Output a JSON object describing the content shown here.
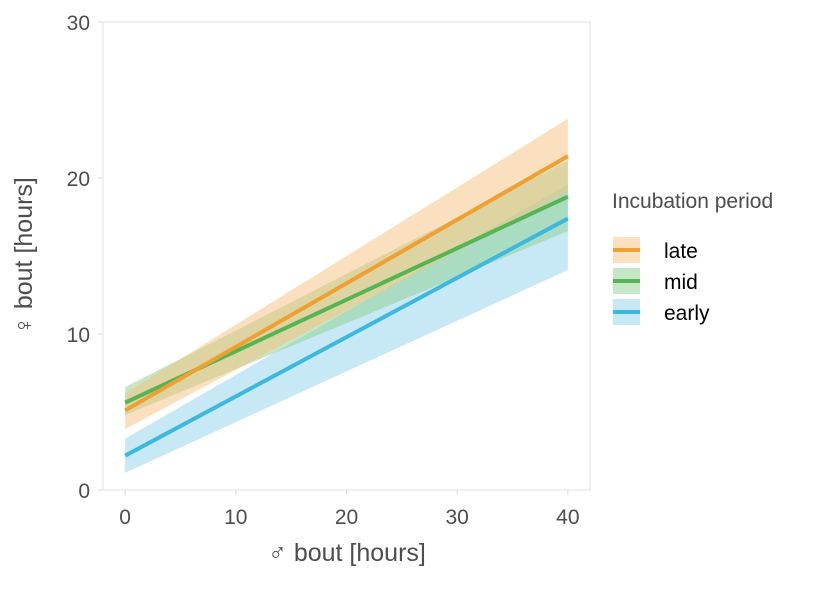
{
  "chart_data": {
    "type": "line",
    "xlabel": "♂ bout [hours]",
    "ylabel": "♀ bout [hours]",
    "xlim": [
      -2,
      42
    ],
    "ylim": [
      0,
      30
    ],
    "x_ticks": [
      "0",
      "10",
      "20",
      "30",
      "40"
    ],
    "y_ticks": [
      "0",
      "10",
      "20",
      "30"
    ],
    "grid": false,
    "legend": {
      "title": "Incubation period",
      "placement": "right",
      "entries": [
        "late",
        "mid",
        "early"
      ]
    },
    "series": [
      {
        "name": "late",
        "color": "#F0A030",
        "band_color": "#F5C27D",
        "x": [
          0,
          40
        ],
        "y": [
          5.1,
          21.4
        ],
        "lower": [
          3.9,
          19.1
        ],
        "upper": [
          6.2,
          23.8
        ]
      },
      {
        "name": "mid",
        "color": "#55B555",
        "band_color": "#8ED08E",
        "x": [
          0,
          40
        ],
        "y": [
          5.6,
          18.8
        ],
        "lower": [
          4.8,
          16.6
        ],
        "upper": [
          6.6,
          21.1
        ]
      },
      {
        "name": "early",
        "color": "#3DB8DF",
        "band_color": "#8FD4EC",
        "x": [
          0,
          40
        ],
        "y": [
          2.2,
          17.4
        ],
        "lower": [
          1.1,
          14.1
        ],
        "upper": [
          3.3,
          19.6
        ]
      }
    ]
  }
}
